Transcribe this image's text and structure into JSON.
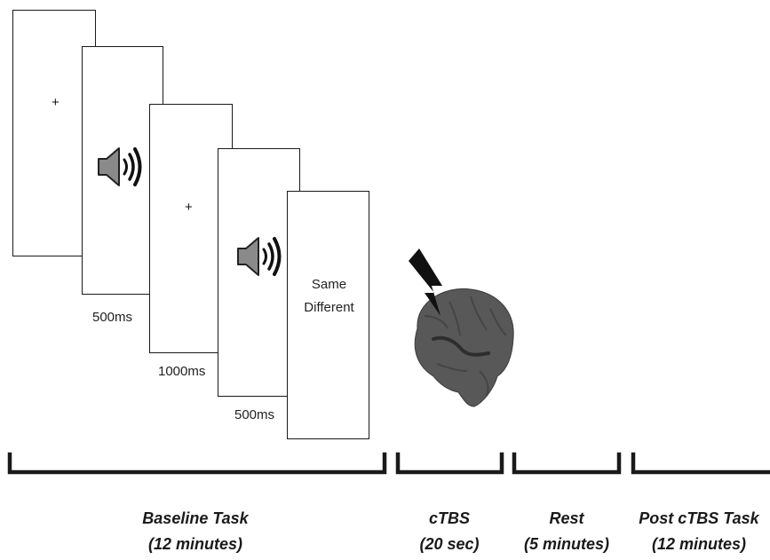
{
  "trial_sequence": {
    "fixation_symbol": "+",
    "durations": [
      "500ms",
      "1000ms",
      "500ms"
    ],
    "response_options": [
      "Same",
      "Different"
    ]
  },
  "timeline": [
    {
      "name": "Baseline Task",
      "duration": "(12 minutes)"
    },
    {
      "name": "cTBS",
      "duration": "(20 sec)"
    },
    {
      "name": "Rest",
      "duration": "(5 minutes)"
    },
    {
      "name": "Post cTBS Task",
      "duration": "(12 minutes)"
    }
  ],
  "icons": [
    "speaker-icon",
    "speaker-icon",
    "lightning-bolt-icon",
    "brain-icon"
  ],
  "colors": {
    "frame": "#1a1a1a",
    "speaker": "#8a8a8a",
    "brain": "#555555",
    "bracket": "#1a1a1a"
  }
}
